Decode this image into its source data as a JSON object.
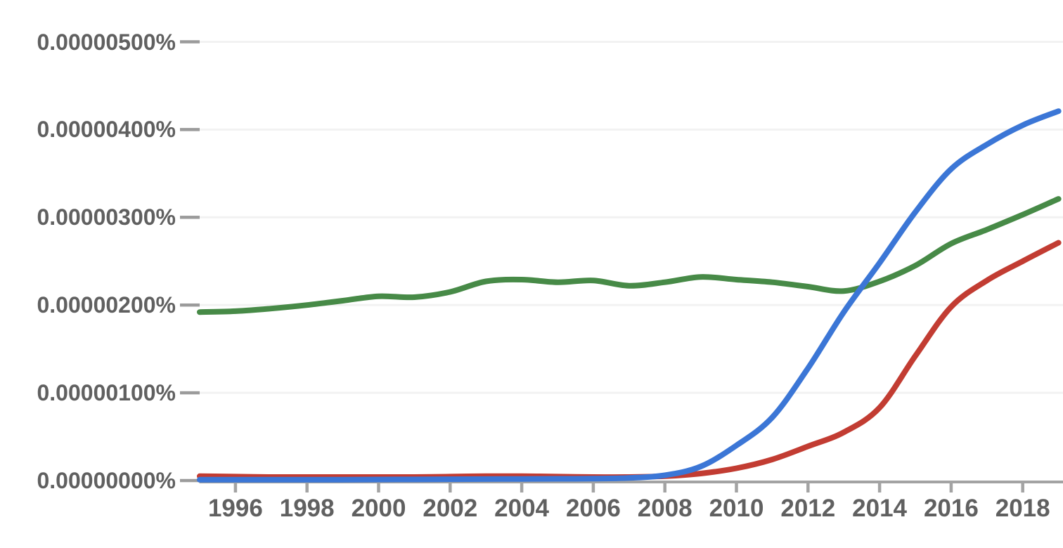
{
  "page": {
    "background": "#ffffff",
    "description": "Ngram-style frequency line chart, no visible title or legend"
  },
  "chart_data": {
    "type": "line",
    "title": "",
    "xlabel": "",
    "ylabel": "",
    "grid": true,
    "legend": "none",
    "xlim": [
      1995,
      2019
    ],
    "ylim": [
      0,
      5.3e-06
    ],
    "x": [
      1995,
      1996,
      1997,
      1998,
      1999,
      2000,
      2001,
      2002,
      2003,
      2004,
      2005,
      2006,
      2007,
      2008,
      2009,
      2010,
      2011,
      2012,
      2013,
      2014,
      2015,
      2016,
      2017,
      2018,
      2019
    ],
    "series": [
      {
        "name": "green",
        "color": "#478A47",
        "values": [
          1.92e-06,
          1.93e-06,
          1.96e-06,
          2e-06,
          2.05e-06,
          2.1e-06,
          2.09e-06,
          2.15e-06,
          2.27e-06,
          2.29e-06,
          2.26e-06,
          2.28e-06,
          2.22e-06,
          2.26e-06,
          2.32e-06,
          2.29e-06,
          2.26e-06,
          2.21e-06,
          2.16e-06,
          2.27e-06,
          2.45e-06,
          2.7e-06,
          2.86e-06,
          3.03e-06,
          3.21e-06
        ]
      },
      {
        "name": "red",
        "color": "#C23C32",
        "values": [
          5e-08,
          4.5e-08,
          4e-08,
          4e-08,
          4e-08,
          4e-08,
          4e-08,
          4.5e-08,
          5e-08,
          5e-08,
          4.5e-08,
          4e-08,
          4e-08,
          5e-08,
          8e-08,
          1.4e-07,
          2.4e-07,
          3.9e-07,
          5.5e-07,
          8.3e-07,
          1.42e-06,
          1.98e-06,
          2.28e-06,
          2.5e-06,
          2.71e-06
        ]
      },
      {
        "name": "blue",
        "color": "#3B76D6",
        "values": [
          1e-08,
          1e-08,
          1e-08,
          1e-08,
          1e-08,
          1.2e-08,
          1.3e-08,
          1.5e-08,
          1.7e-08,
          1.8e-08,
          2e-08,
          2.2e-08,
          3e-08,
          6e-08,
          1.6e-07,
          4e-07,
          7.2e-07,
          1.28e-06,
          1.92e-06,
          2.48e-06,
          3.06e-06,
          3.55e-06,
          3.83e-06,
          4.05e-06,
          4.21e-06
        ]
      }
    ],
    "y_ticks": [
      {
        "value": 0.0,
        "label": "0.00000000%"
      },
      {
        "value": 1e-06,
        "label": "0.00000100%"
      },
      {
        "value": 2e-06,
        "label": "0.00000200%"
      },
      {
        "value": 3e-06,
        "label": "0.00000300%"
      },
      {
        "value": 4e-06,
        "label": "0.00000400%"
      },
      {
        "value": 5e-06,
        "label": "0.00000500%"
      }
    ],
    "x_ticks": [
      {
        "value": 1996,
        "label": "1996"
      },
      {
        "value": 1998,
        "label": "1998"
      },
      {
        "value": 2000,
        "label": "2000"
      },
      {
        "value": 2002,
        "label": "2002"
      },
      {
        "value": 2004,
        "label": "2004"
      },
      {
        "value": 2006,
        "label": "2006"
      },
      {
        "value": 2008,
        "label": "2008"
      },
      {
        "value": 2010,
        "label": "2010"
      },
      {
        "value": 2012,
        "label": "2012"
      },
      {
        "value": 2014,
        "label": "2014"
      },
      {
        "value": 2016,
        "label": "2016"
      },
      {
        "value": 2018,
        "label": "2018"
      }
    ],
    "colors": {
      "axis": "#A3A3A3",
      "x_tick": "#A3A3A3",
      "y_tick_dash": "#9B9B9B",
      "gridline": "#F2F2F2",
      "label_text": "#606060"
    }
  }
}
